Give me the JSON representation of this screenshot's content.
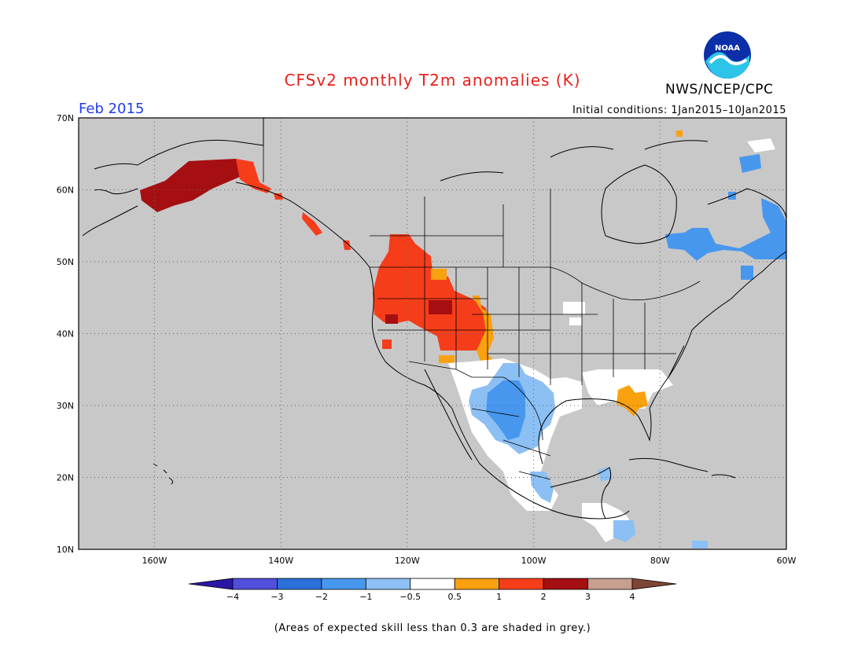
{
  "header": {
    "title": "CFSv2 monthly T2m anomalies (K)",
    "agency": "NWS/NCEP/CPC",
    "logo_text": "NOAA",
    "period": "Feb 2015",
    "initial_conditions": "Initial conditions: 1Jan2015–10Jan2015"
  },
  "map": {
    "background_color": "#c8c8c8",
    "lon_range": [
      -172,
      -60
    ],
    "lat_range": [
      10,
      70
    ],
    "lat_labels": [
      "70N",
      "60N",
      "50N",
      "40N",
      "30N",
      "20N",
      "10N"
    ],
    "lon_labels": [
      "160W",
      "140W",
      "120W",
      "100W",
      "80W",
      "60W"
    ],
    "grid": "dotted"
  },
  "legend": {
    "ticks": [
      "−4",
      "−3",
      "−2",
      "−1",
      "−0.5",
      "0.5",
      "1",
      "2",
      "3",
      "4"
    ],
    "colors": [
      "#2a16a4",
      "#4f4fdc",
      "#2b6fd8",
      "#4897ee",
      "#8cc0f4",
      "#ffffff",
      "#f9a10f",
      "#f53d1a",
      "#a50f12",
      "#c79e90",
      "#7d4634"
    ]
  },
  "footnote": "(Areas of expected skill less than 0.3 are shaded in grey.)"
}
